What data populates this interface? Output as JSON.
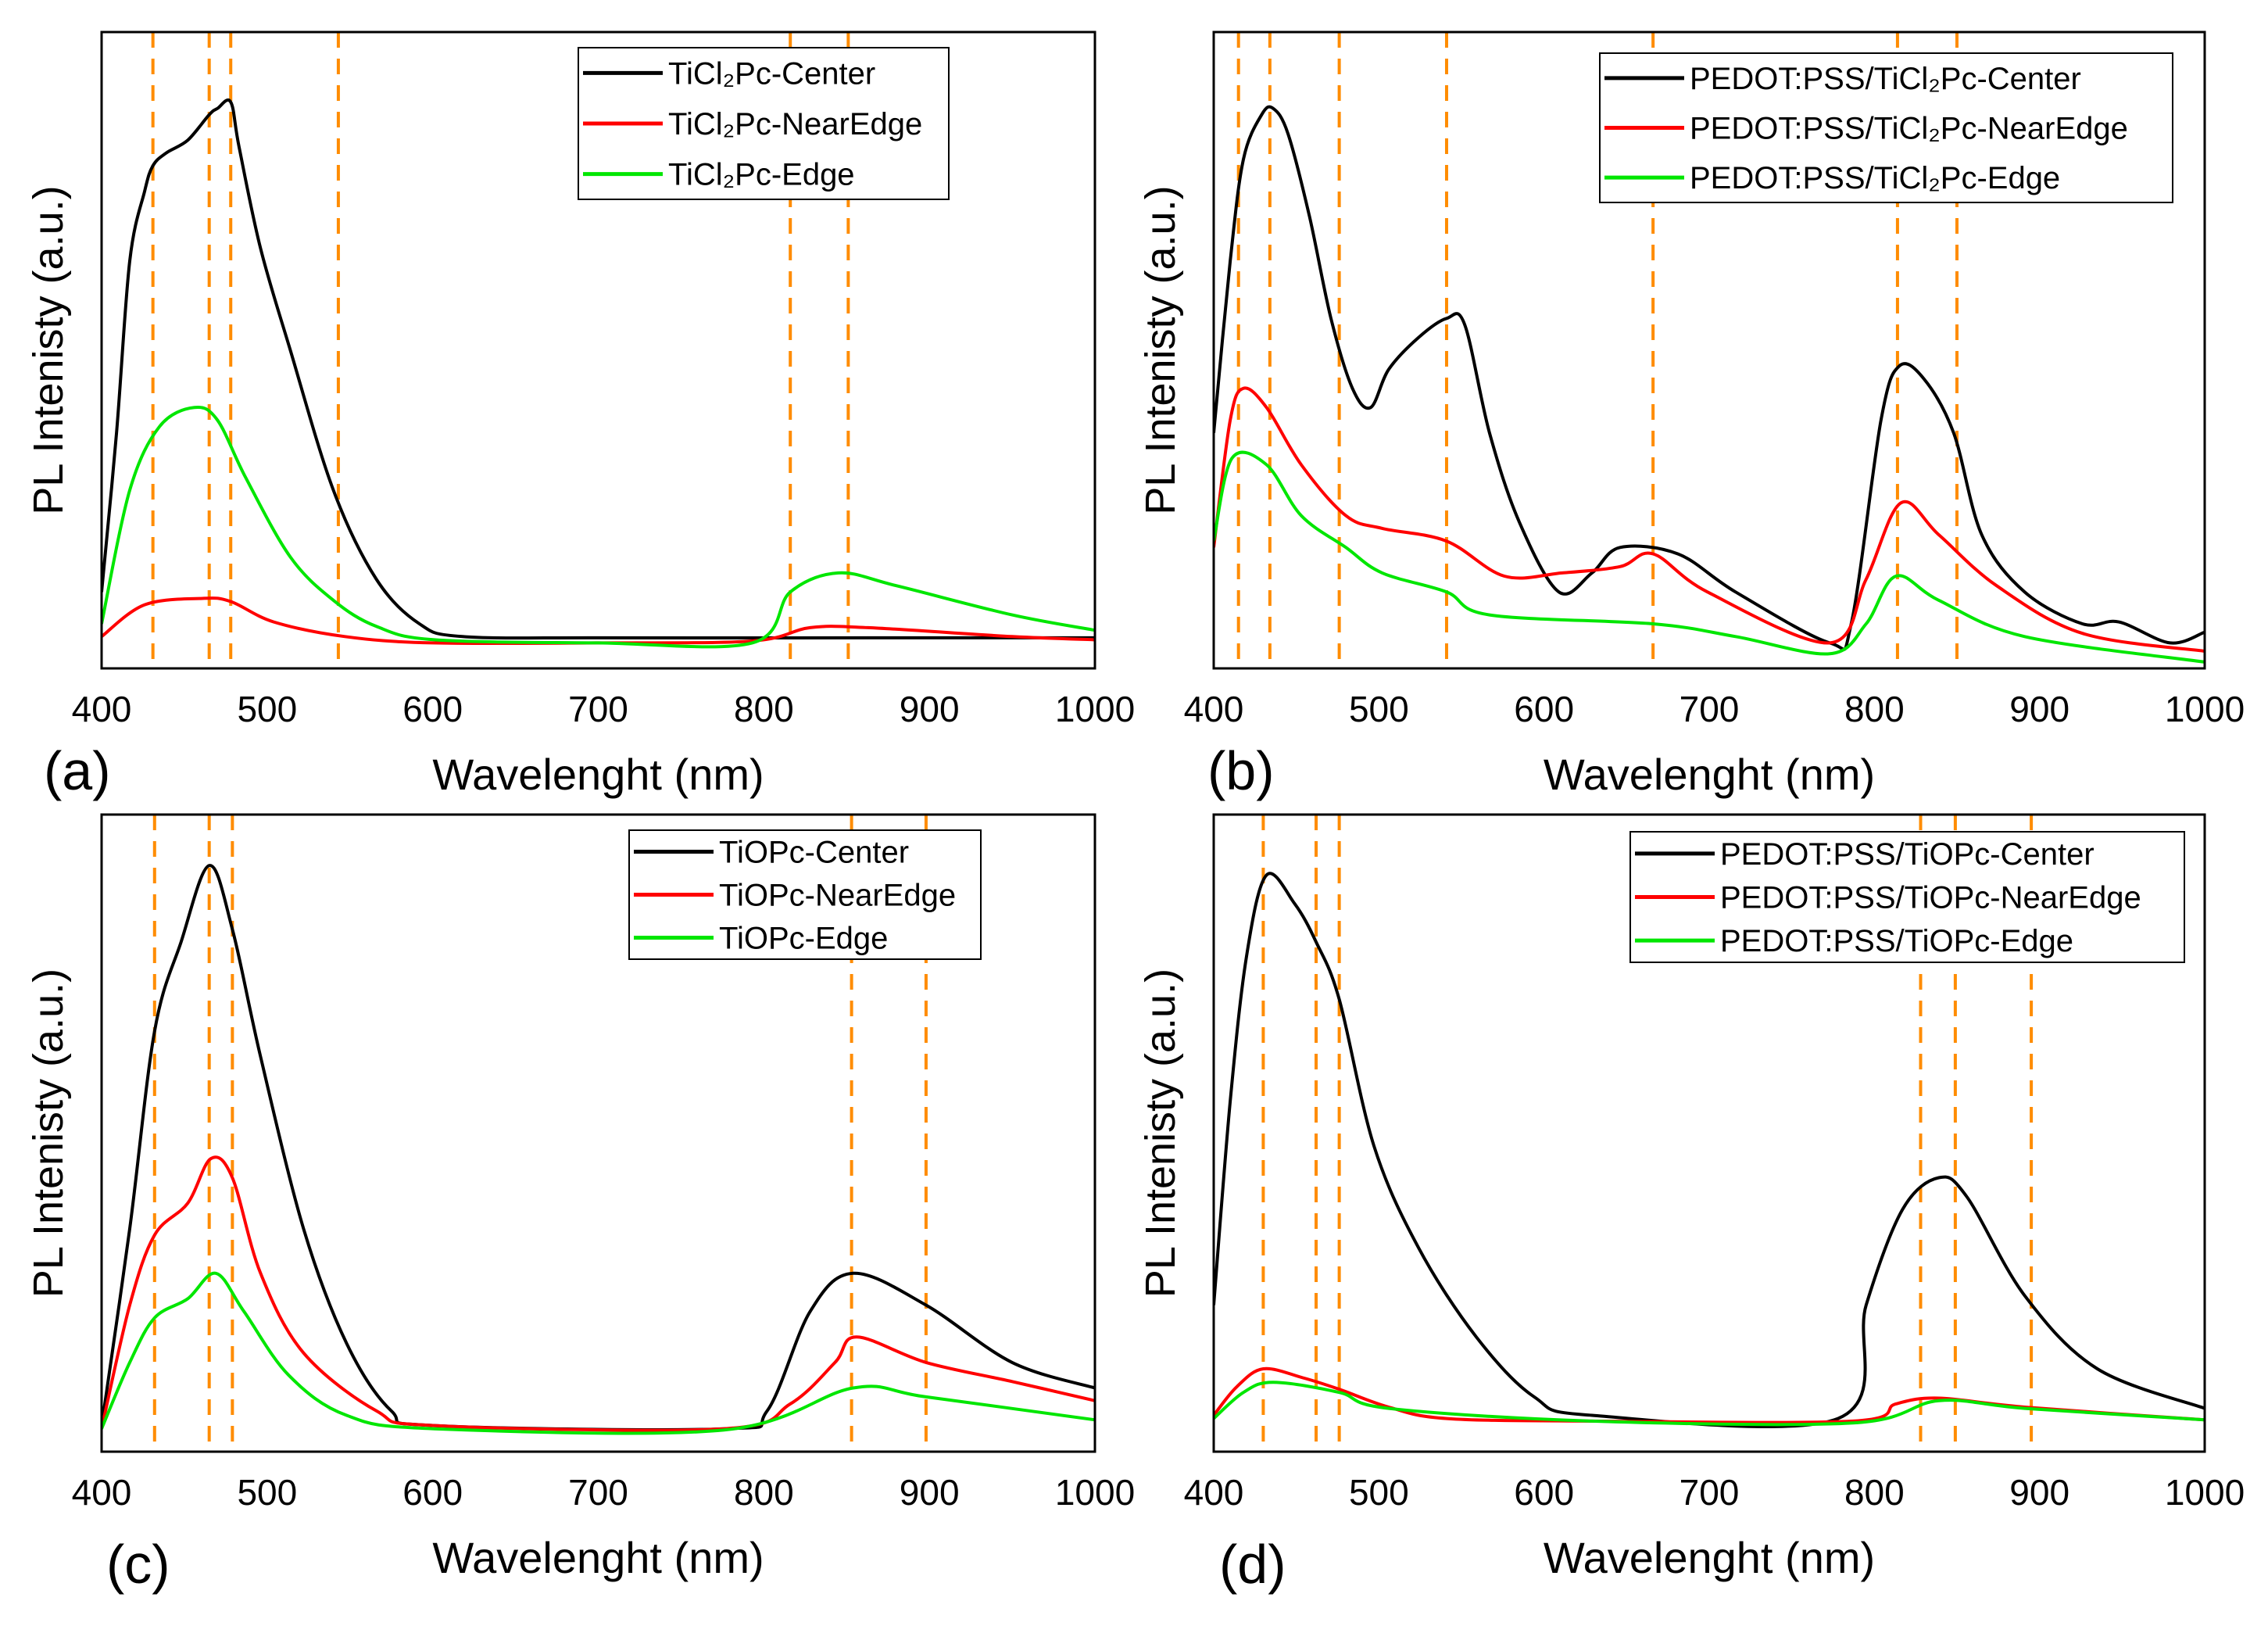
{
  "colors": {
    "center": "#000000",
    "nearedge": "#ff0000",
    "edge": "#00e600",
    "marker": "#ff8c00"
  },
  "chart_data": [
    {
      "panel": "(a)",
      "type": "line",
      "xlabel": "Wavelenght (nm)",
      "ylabel": "PL Intenisty (a.u.)",
      "xlim": [
        400,
        1000
      ],
      "ylim": [
        0,
        1
      ],
      "xticks": [
        400,
        500,
        600,
        700,
        800,
        900,
        1000
      ],
      "legend_position": "top-right",
      "markers_nm": [
        431,
        465,
        478,
        543,
        816,
        851
      ],
      "series": [
        {
          "name": "TiCl₂Pc-Center",
          "color": "center",
          "x": [
            400,
            409,
            417,
            426,
            431,
            439,
            452,
            465,
            470,
            478,
            483,
            496,
            514,
            540,
            566,
            592,
            618,
            700,
            863,
            1000
          ],
          "y": [
            0.12,
            0.37,
            0.64,
            0.75,
            0.79,
            0.81,
            0.83,
            0.87,
            0.88,
            0.89,
            0.82,
            0.66,
            0.5,
            0.28,
            0.14,
            0.07,
            0.05,
            0.048,
            0.048,
            0.048
          ]
        },
        {
          "name": "TiCl₂Pc-NearEdge",
          "color": "nearedge",
          "x": [
            400,
            426,
            461,
            478,
            504,
            547,
            600,
            700,
            793,
            828,
            863,
            950,
            1000
          ],
          "y": [
            0.05,
            0.1,
            0.11,
            0.105,
            0.073,
            0.05,
            0.04,
            0.04,
            0.043,
            0.064,
            0.064,
            0.05,
            0.045
          ]
        },
        {
          "name": "TiCl₂Pc-Edge",
          "color": "edge",
          "x": [
            400,
            417,
            435,
            456,
            470,
            487,
            514,
            540,
            566,
            601,
            700,
            793,
            816,
            845,
            880,
            950,
            1000
          ],
          "y": [
            0.07,
            0.28,
            0.38,
            0.41,
            0.39,
            0.3,
            0.175,
            0.107,
            0.066,
            0.045,
            0.04,
            0.04,
            0.12,
            0.15,
            0.13,
            0.084,
            0.06
          ]
        }
      ]
    },
    {
      "panel": "(b)",
      "type": "line",
      "xlabel": "Wavelenght (nm)",
      "ylabel": "PL Intenisty (a.u.)",
      "xlim": [
        400,
        1000
      ],
      "ylim": [
        0,
        1
      ],
      "xticks": [
        400,
        500,
        600,
        700,
        800,
        900,
        1000
      ],
      "legend_position": "top-right",
      "markers_nm": [
        415,
        434,
        476,
        541,
        666,
        814,
        850
      ],
      "series": [
        {
          "name": "PEDOT:PSS/TiCl₂Pc-Center",
          "color": "center",
          "x": [
            400,
            410,
            418,
            429,
            436,
            445,
            458,
            471,
            484,
            495,
            506,
            524,
            541,
            552,
            567,
            585,
            609,
            629,
            646,
            681,
            716,
            773,
            786,
            804,
            815,
            830,
            848,
            865,
            891,
            926,
            948,
            979,
            1000
          ],
          "y": [
            0.37,
            0.64,
            0.8,
            0.87,
            0.88,
            0.84,
            0.71,
            0.55,
            0.44,
            0.41,
            0.47,
            0.52,
            0.55,
            0.54,
            0.37,
            0.23,
            0.12,
            0.15,
            0.19,
            0.18,
            0.12,
            0.04,
            0.07,
            0.39,
            0.475,
            0.455,
            0.37,
            0.21,
            0.12,
            0.07,
            0.073,
            0.04,
            0.057
          ]
        },
        {
          "name": "PEDOT:PSS/TiCl₂Pc-NearEdge",
          "color": "nearedge",
          "x": [
            400,
            410,
            418,
            432,
            453,
            480,
            502,
            541,
            576,
            611,
            646,
            666,
            699,
            773,
            795,
            816,
            839,
            874,
            926,
            1000
          ],
          "y": [
            0.19,
            0.39,
            0.44,
            0.41,
            0.32,
            0.24,
            0.22,
            0.2,
            0.145,
            0.15,
            0.16,
            0.18,
            0.12,
            0.04,
            0.14,
            0.26,
            0.21,
            0.13,
            0.055,
            0.027
          ]
        },
        {
          "name": "PEDOT:PSS/TiCl₂Pc-Edge",
          "color": "edge",
          "x": [
            400,
            411,
            432,
            453,
            480,
            502,
            541,
            567,
            666,
            716,
            773,
            795,
            813,
            839,
            891,
            1000
          ],
          "y": [
            0.2,
            0.33,
            0.32,
            0.24,
            0.19,
            0.15,
            0.12,
            0.084,
            0.07,
            0.05,
            0.023,
            0.07,
            0.145,
            0.107,
            0.05,
            0.01
          ]
        }
      ]
    },
    {
      "panel": "(c)",
      "type": "line",
      "xlabel": "Wavelenght (nm)",
      "ylabel": "PL Intenisty (a.u.)",
      "xlim": [
        400,
        1000
      ],
      "ylim": [
        0,
        1
      ],
      "xticks": [
        400,
        500,
        600,
        700,
        800,
        900,
        1000
      ],
      "legend_position": "top-right",
      "markers_nm": [
        432,
        465,
        479,
        853,
        898
      ],
      "series": [
        {
          "name": "TiOPc-Center",
          "color": "center",
          "x": [
            400,
            417,
            432,
            448,
            465,
            479,
            496,
            522,
            548,
            575,
            601,
            776,
            802,
            828,
            854,
            898,
            950,
            1000
          ],
          "y": [
            0.04,
            0.35,
            0.66,
            0.8,
            0.92,
            0.82,
            0.62,
            0.35,
            0.17,
            0.064,
            0.041,
            0.036,
            0.064,
            0.22,
            0.28,
            0.23,
            0.14,
            0.1
          ]
        },
        {
          "name": "TiOPc-NearEdge",
          "color": "nearedge",
          "x": [
            400,
            417,
            432,
            452,
            466,
            479,
            496,
            522,
            566,
            601,
            776,
            816,
            843,
            856,
            898,
            950,
            1000
          ],
          "y": [
            0.036,
            0.23,
            0.34,
            0.39,
            0.46,
            0.43,
            0.28,
            0.155,
            0.064,
            0.041,
            0.036,
            0.075,
            0.14,
            0.18,
            0.14,
            0.11,
            0.08
          ]
        },
        {
          "name": "TiOPc-Edge",
          "color": "edge",
          "x": [
            400,
            417,
            432,
            452,
            469,
            486,
            513,
            548,
            601,
            776,
            854,
            898,
            1000
          ],
          "y": [
            0.036,
            0.14,
            0.21,
            0.24,
            0.28,
            0.22,
            0.12,
            0.057,
            0.036,
            0.034,
            0.1,
            0.086,
            0.05
          ]
        }
      ]
    },
    {
      "panel": "(d)",
      "type": "line",
      "xlabel": "Wavelenght (nm)",
      "ylabel": "PL Intenisty (a.u.)",
      "xlim": [
        400,
        1000
      ],
      "ylim": [
        0,
        1
      ],
      "xticks": [
        400,
        500,
        600,
        700,
        800,
        900,
        1000
      ],
      "legend_position": "top-right",
      "markers_nm": [
        430,
        462,
        476,
        828,
        849,
        895
      ],
      "series": [
        {
          "name": "PEDOT:PSS/TiOPc-Center",
          "color": "center",
          "x": [
            400,
            410,
            420,
            432,
            449,
            462,
            476,
            497,
            524,
            559,
            594,
            629,
            778,
            795,
            817,
            839,
            856,
            891,
            935,
            1000
          ],
          "y": [
            0.23,
            0.55,
            0.78,
            0.905,
            0.86,
            0.8,
            0.71,
            0.48,
            0.32,
            0.18,
            0.086,
            0.057,
            0.052,
            0.23,
            0.38,
            0.43,
            0.4,
            0.245,
            0.13,
            0.068
          ]
        },
        {
          "name": "PEDOT:PSS/TiOPc-NearEdge",
          "color": "nearedge",
          "x": [
            400,
            414,
            430,
            454,
            476,
            506,
            541,
            629,
            787,
            813,
            839,
            891,
            1000
          ],
          "y": [
            0.057,
            0.102,
            0.13,
            0.116,
            0.098,
            0.07,
            0.052,
            0.048,
            0.048,
            0.075,
            0.084,
            0.07,
            0.05
          ]
        },
        {
          "name": "PEDOT:PSS/TiOPc-Edge",
          "color": "edge",
          "x": [
            400,
            418,
            436,
            476,
            506,
            629,
            787,
            839,
            891,
            1000
          ],
          "y": [
            0.052,
            0.093,
            0.109,
            0.093,
            0.068,
            0.048,
            0.045,
            0.08,
            0.068,
            0.05
          ]
        }
      ]
    }
  ]
}
